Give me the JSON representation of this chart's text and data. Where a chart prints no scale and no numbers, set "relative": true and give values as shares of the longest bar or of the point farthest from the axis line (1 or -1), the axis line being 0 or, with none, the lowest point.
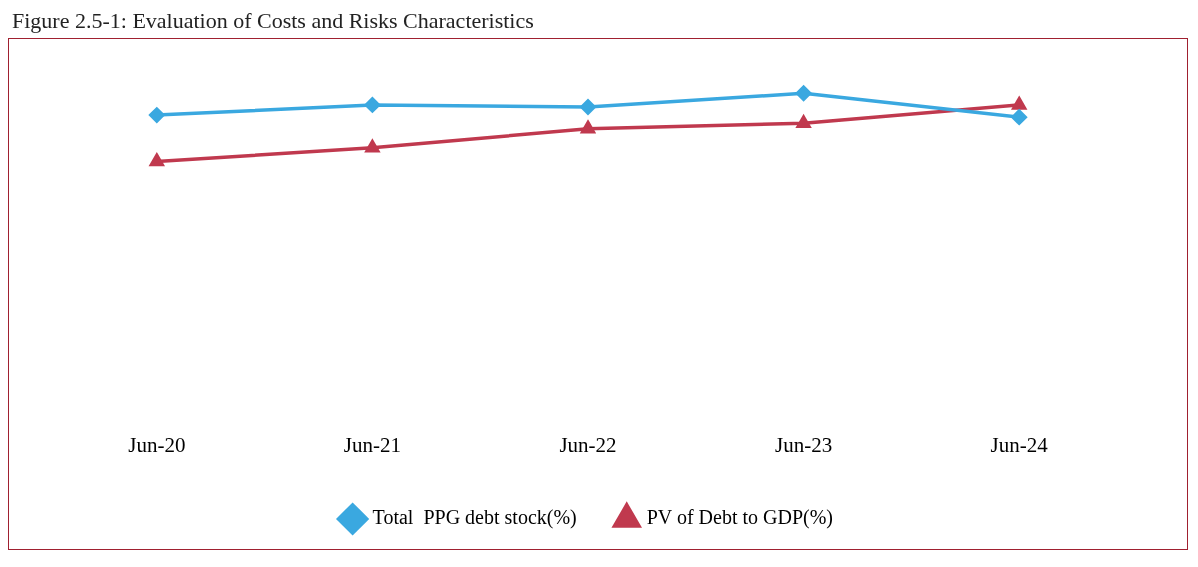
{
  "chart_data": {
    "type": "line",
    "title": "Figure 2.5-1: Evaluation of Costs and Risks Characteristics",
    "categories": [
      "Jun-20",
      "Jun-21",
      "Jun-22",
      "Jun-23",
      "Jun-24"
    ],
    "relative": true,
    "grid": false,
    "legend": "bottom",
    "line_style": "solid",
    "series": [
      {
        "name": "Total  PPG debt stock(%)",
        "color": "#3aa8e0",
        "marker": "diamond",
        "values": [
          0.68,
          0.83,
          0.8,
          1,
          0.65
        ]
      },
      {
        "name": "PV of Debt to GDP(%)",
        "color": "#c0394e",
        "marker": "triangle",
        "values": [
          0,
          0.2,
          0.48,
          0.56,
          0.83
        ]
      }
    ]
  }
}
